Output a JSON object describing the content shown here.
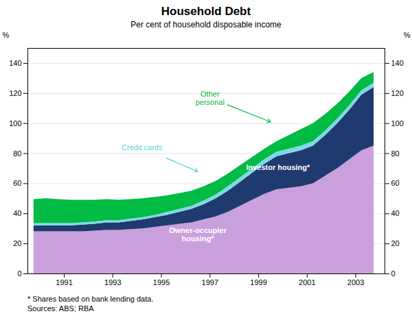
{
  "chart_data": {
    "type": "area",
    "stacked": true,
    "title": "Household Debt",
    "subtitle": "Per cent of household disposable income",
    "footnote": "* Shares based on bank lending data.\nSources: ABS; RBA",
    "ylabel": "%",
    "y2label": "%",
    "x": [
      1989.75,
      1990.25,
      1990.75,
      1991.25,
      1991.75,
      1992.25,
      1992.75,
      1993.25,
      1993.75,
      1994.25,
      1994.75,
      1995.25,
      1995.75,
      1996.25,
      1996.75,
      1997.25,
      1997.75,
      1998.25,
      1998.75,
      1999.25,
      1999.75,
      2000.25,
      2000.75,
      2001.25,
      2001.75,
      2002.25,
      2002.75,
      2003.25,
      2003.75
    ],
    "series": [
      {
        "name": "Owner-occupier\nhousing*",
        "color": "#C9A0DC",
        "values": [
          28,
          28,
          28,
          28,
          28,
          28.5,
          29,
          29,
          29.5,
          30,
          31,
          32,
          33,
          34,
          36,
          38,
          41,
          45,
          49,
          53,
          56,
          57,
          58,
          60,
          65,
          70,
          76,
          82,
          85
        ]
      },
      {
        "name": "Investor housing*",
        "color": "#1F3A6E",
        "values": [
          4,
          4,
          4,
          4,
          4.5,
          4.5,
          5,
          5,
          5.5,
          6,
          6.5,
          7,
          8,
          9,
          10,
          12,
          14,
          16,
          18,
          20,
          22,
          23,
          24,
          25,
          27,
          30,
          33,
          37,
          39
        ]
      },
      {
        "name": "Credit cards",
        "color": "#7FD8E8",
        "values": [
          1.5,
          1.5,
          1.5,
          1.5,
          1.5,
          1.5,
          1.5,
          1.5,
          1.5,
          1.5,
          1.5,
          2,
          2,
          2,
          2.5,
          2.5,
          3,
          3,
          3,
          3,
          3,
          3,
          3,
          3,
          3,
          3,
          3,
          3,
          3
        ]
      },
      {
        "name": "Other\npersonal",
        "color": "#00BB44",
        "values": [
          16,
          16.5,
          16,
          15.5,
          15,
          14.5,
          14,
          13.5,
          13,
          12.5,
          12,
          11,
          10.5,
          10,
          9.5,
          9,
          8.5,
          8,
          7.5,
          7,
          7,
          9,
          11,
          12,
          11,
          10,
          9,
          8,
          7
        ]
      }
    ],
    "xlim": [
      1989.5,
      2004.2
    ],
    "xticks": [
      1991,
      1993,
      1995,
      1997,
      1999,
      2001,
      2003
    ],
    "ylim": [
      0,
      150
    ],
    "yticks": [
      0,
      20,
      40,
      60,
      80,
      100,
      120,
      140
    ],
    "y2lim": [
      0,
      150
    ],
    "y2ticks": [
      0,
      20,
      40,
      60,
      80,
      100,
      120,
      140
    ],
    "grid": true,
    "annotations": [
      {
        "text": "Other\npersonal",
        "x": 1997.0,
        "y": 117,
        "arrow_x": 1999.5,
        "arrow_y": 101,
        "color": "#00BB44"
      },
      {
        "text": "Credit cards",
        "x": 1994.2,
        "y": 84,
        "arrow_x": 1996.5,
        "arrow_y": 68,
        "color": "#5BCFDF"
      },
      {
        "text": "Investor housing*",
        "x": 1999.8,
        "y": 71,
        "color": "white"
      },
      {
        "text": "Owner-occupier\nhousing*",
        "x": 1996.5,
        "y": 26,
        "color": "white"
      }
    ]
  }
}
